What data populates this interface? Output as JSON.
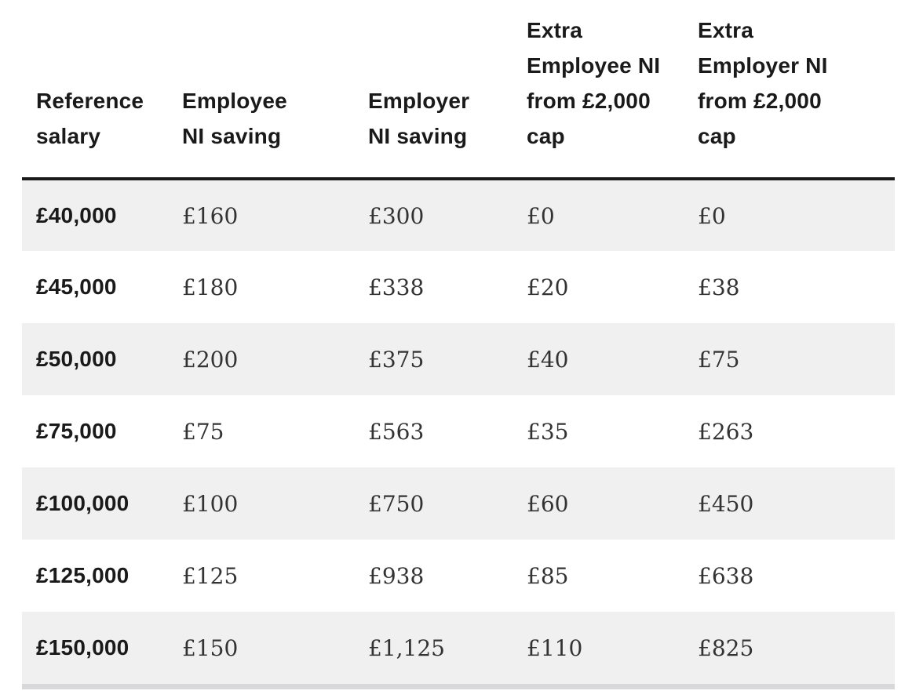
{
  "colors": {
    "header_text": "#1a1a1a",
    "data_text": "#333333",
    "row_stripe": "#f0f0f1",
    "header_rule": "#1a1a1a",
    "bottom_rule": "#d8d8da",
    "background": "#ffffff"
  },
  "table": {
    "header_lines": [
      [
        "Reference",
        "salary"
      ],
      [
        "Employee",
        "NI saving"
      ],
      [
        "Employer",
        "NI saving"
      ],
      [
        "Extra",
        "Employee NI",
        "from £2,000",
        "cap"
      ],
      [
        "Extra",
        "Employer NI",
        "from £2,000",
        "cap"
      ]
    ]
  },
  "chart_data": {
    "type": "table",
    "columns": [
      "Reference salary",
      "Employee NI saving",
      "Employer NI saving",
      "Extra Employee NI from £2,000 cap",
      "Extra Employer NI from £2,000 cap"
    ],
    "rows": [
      [
        "£40,000",
        "£160",
        "£300",
        "£0",
        "£0"
      ],
      [
        "£45,000",
        "£180",
        "£338",
        "£20",
        "£38"
      ],
      [
        "£50,000",
        "£200",
        "£375",
        "£40",
        "£75"
      ],
      [
        "£75,000",
        "£75",
        "£563",
        "£35",
        "£263"
      ],
      [
        "£100,000",
        "£100",
        "£750",
        "£60",
        "£450"
      ],
      [
        "£125,000",
        "£125",
        "£938",
        "£85",
        "£638"
      ],
      [
        "£150,000",
        "£150",
        "£1,125",
        "£110",
        "£825"
      ]
    ],
    "series": [
      {
        "name": "Employee NI saving",
        "values": [
          160,
          180,
          200,
          75,
          100,
          125,
          150
        ]
      },
      {
        "name": "Employer NI saving",
        "values": [
          300,
          338,
          375,
          563,
          750,
          938,
          1125
        ]
      },
      {
        "name": "Extra Employee NI from £2,000 cap",
        "values": [
          0,
          20,
          40,
          35,
          60,
          85,
          110
        ]
      },
      {
        "name": "Extra Employer NI from £2,000 cap",
        "values": [
          0,
          38,
          75,
          263,
          450,
          638,
          825
        ]
      }
    ],
    "categories": [
      "£40,000",
      "£45,000",
      "£50,000",
      "£75,000",
      "£100,000",
      "£125,000",
      "£150,000"
    ]
  }
}
